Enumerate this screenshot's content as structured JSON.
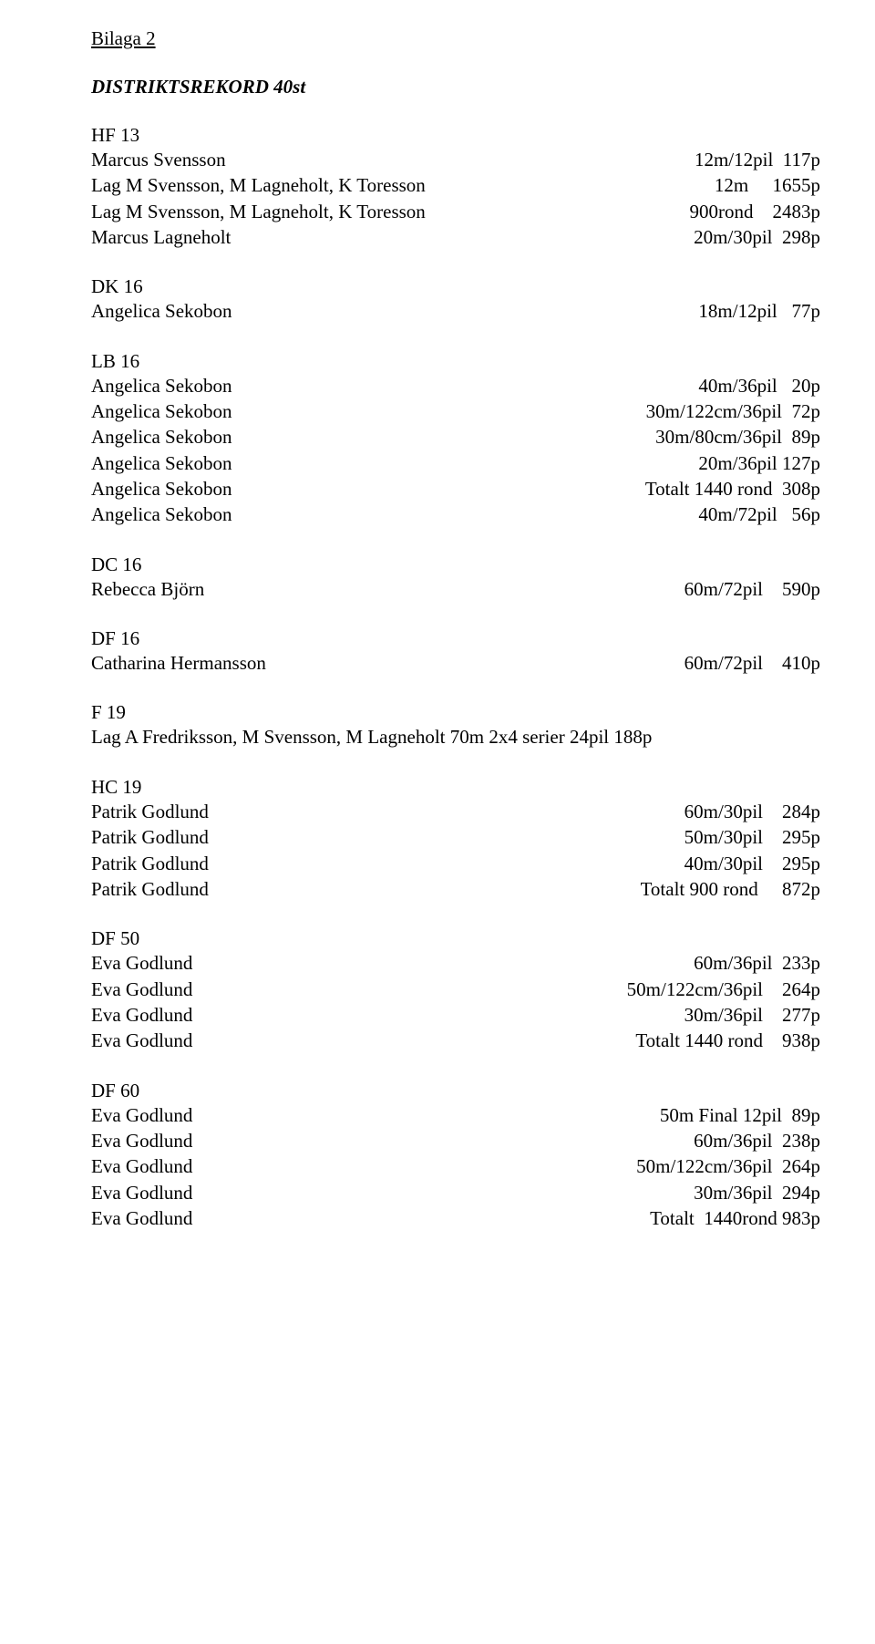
{
  "title": "Bilaga 2",
  "subtitle": "DISTRIKTSREKORD 40st",
  "sections": [
    {
      "head": "HF 13",
      "rows": [
        {
          "left": "Marcus Svensson",
          "right": "12m/12pil  117p"
        },
        {
          "left": "Lag M Svensson, M Lagneholt, K Toresson",
          "right": "12m     1655p"
        },
        {
          "left": "Lag M Svensson, M Lagneholt, K Toresson",
          "right": "900rond    2483p"
        },
        {
          "left": "Marcus Lagneholt",
          "right": "20m/30pil  298p"
        }
      ]
    },
    {
      "head": "DK 16",
      "rows": [
        {
          "left": "Angelica Sekobon",
          "right": "18m/12pil   77p"
        }
      ]
    },
    {
      "head": "LB 16",
      "rows": [
        {
          "left": "Angelica Sekobon",
          "right": "40m/36pil   20p"
        },
        {
          "left": "Angelica Sekobon",
          "right": "30m/122cm/36pil  72p"
        },
        {
          "left": "Angelica Sekobon",
          "right": "30m/80cm/36pil  89p"
        },
        {
          "left": "Angelica Sekobon",
          "right": "20m/36pil 127p"
        },
        {
          "left": "Angelica Sekobon",
          "right": "Totalt 1440 rond  308p"
        },
        {
          "left": "Angelica Sekobon",
          "right": "40m/72pil   56p"
        }
      ]
    },
    {
      "head": "DC 16",
      "rows": [
        {
          "left": "Rebecca Björn",
          "right": "60m/72pil    590p"
        }
      ]
    },
    {
      "head": "DF 16",
      "rows": [
        {
          "left": "Catharina Hermansson",
          "right": "60m/72pil    410p"
        }
      ]
    },
    {
      "head": "F 19",
      "rows": [
        {
          "left": "Lag A Fredriksson, M Svensson, M Lagneholt 70m 2x4 serier 24pil 188p",
          "right": ""
        }
      ]
    },
    {
      "head": "HC 19",
      "rows": [
        {
          "left": "Patrik Godlund",
          "right": "60m/30pil    284p"
        },
        {
          "left": "Patrik Godlund",
          "right": "50m/30pil    295p"
        },
        {
          "left": "Patrik Godlund",
          "right": "40m/30pil    295p"
        },
        {
          "left": "Patrik Godlund",
          "right": "Totalt 900 rond     872p"
        }
      ]
    },
    {
      "head": "DF 50",
      "rows": [
        {
          "left": "Eva Godlund",
          "right": "60m/36pil  233p"
        },
        {
          "left": "Eva Godlund",
          "right": "50m/122cm/36pil    264p"
        },
        {
          "left": "Eva Godlund",
          "right": "30m/36pil    277p"
        },
        {
          "left": "Eva Godlund",
          "right": "Totalt 1440 rond    938p"
        }
      ]
    },
    {
      "head": "DF 60",
      "rows": [
        {
          "left": "Eva Godlund",
          "right": "50m Final 12pil  89p"
        },
        {
          "left": "Eva Godlund",
          "right": "60m/36pil  238p"
        },
        {
          "left": "Eva Godlund",
          "right": "50m/122cm/36pil  264p"
        },
        {
          "left": "Eva Godlund",
          "right": "30m/36pil  294p"
        },
        {
          "left": "Eva Godlund",
          "right": "Totalt  1440rond 983p"
        }
      ]
    }
  ]
}
